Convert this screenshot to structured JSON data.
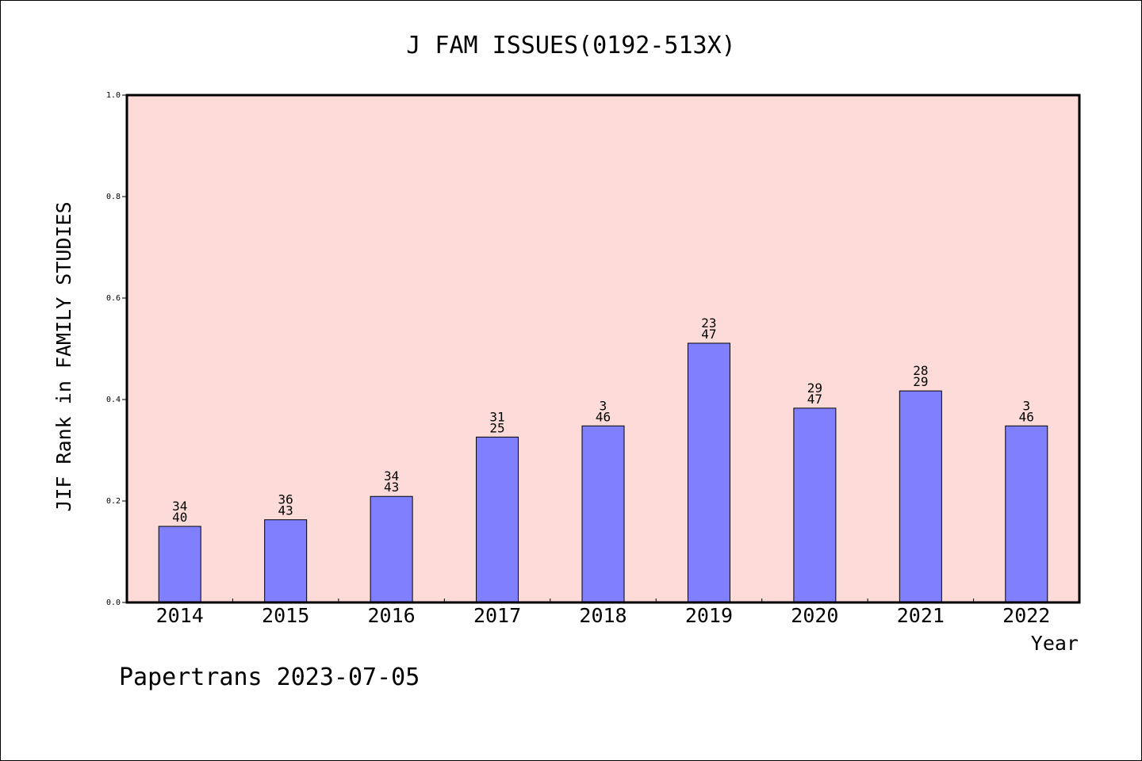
{
  "chart_data": {
    "type": "bar",
    "title": "J FAM ISSUES(0192-513X)",
    "xlabel": "Year",
    "ylabel": "JIF Rank in FAMILY STUDIES",
    "ylim": [
      0.0,
      1.0
    ],
    "yticks": [
      "0.0",
      "0.2",
      "0.4",
      "0.6",
      "0.8",
      "1.0"
    ],
    "grid": false,
    "categories": [
      "2014",
      "2015",
      "2016",
      "2017",
      "2018",
      "2019",
      "2020",
      "2021",
      "2022"
    ],
    "values": [
      0.15,
      0.163,
      0.209,
      0.326,
      0.348,
      0.511,
      0.383,
      0.417,
      0.348
    ],
    "label_top": [
      "34",
      "36",
      "34",
      "31",
      "3",
      "23",
      "29",
      "28",
      "3"
    ],
    "label_bottom": [
      "40",
      "43",
      "43",
      "25",
      "46",
      "47",
      "47",
      "29",
      "46"
    ],
    "colors": {
      "bar": "#8080ff",
      "plot_background": "#fddbd8",
      "axis": "#000000"
    }
  },
  "footer": {
    "watermark": "Papertrans 2023-07-05"
  }
}
